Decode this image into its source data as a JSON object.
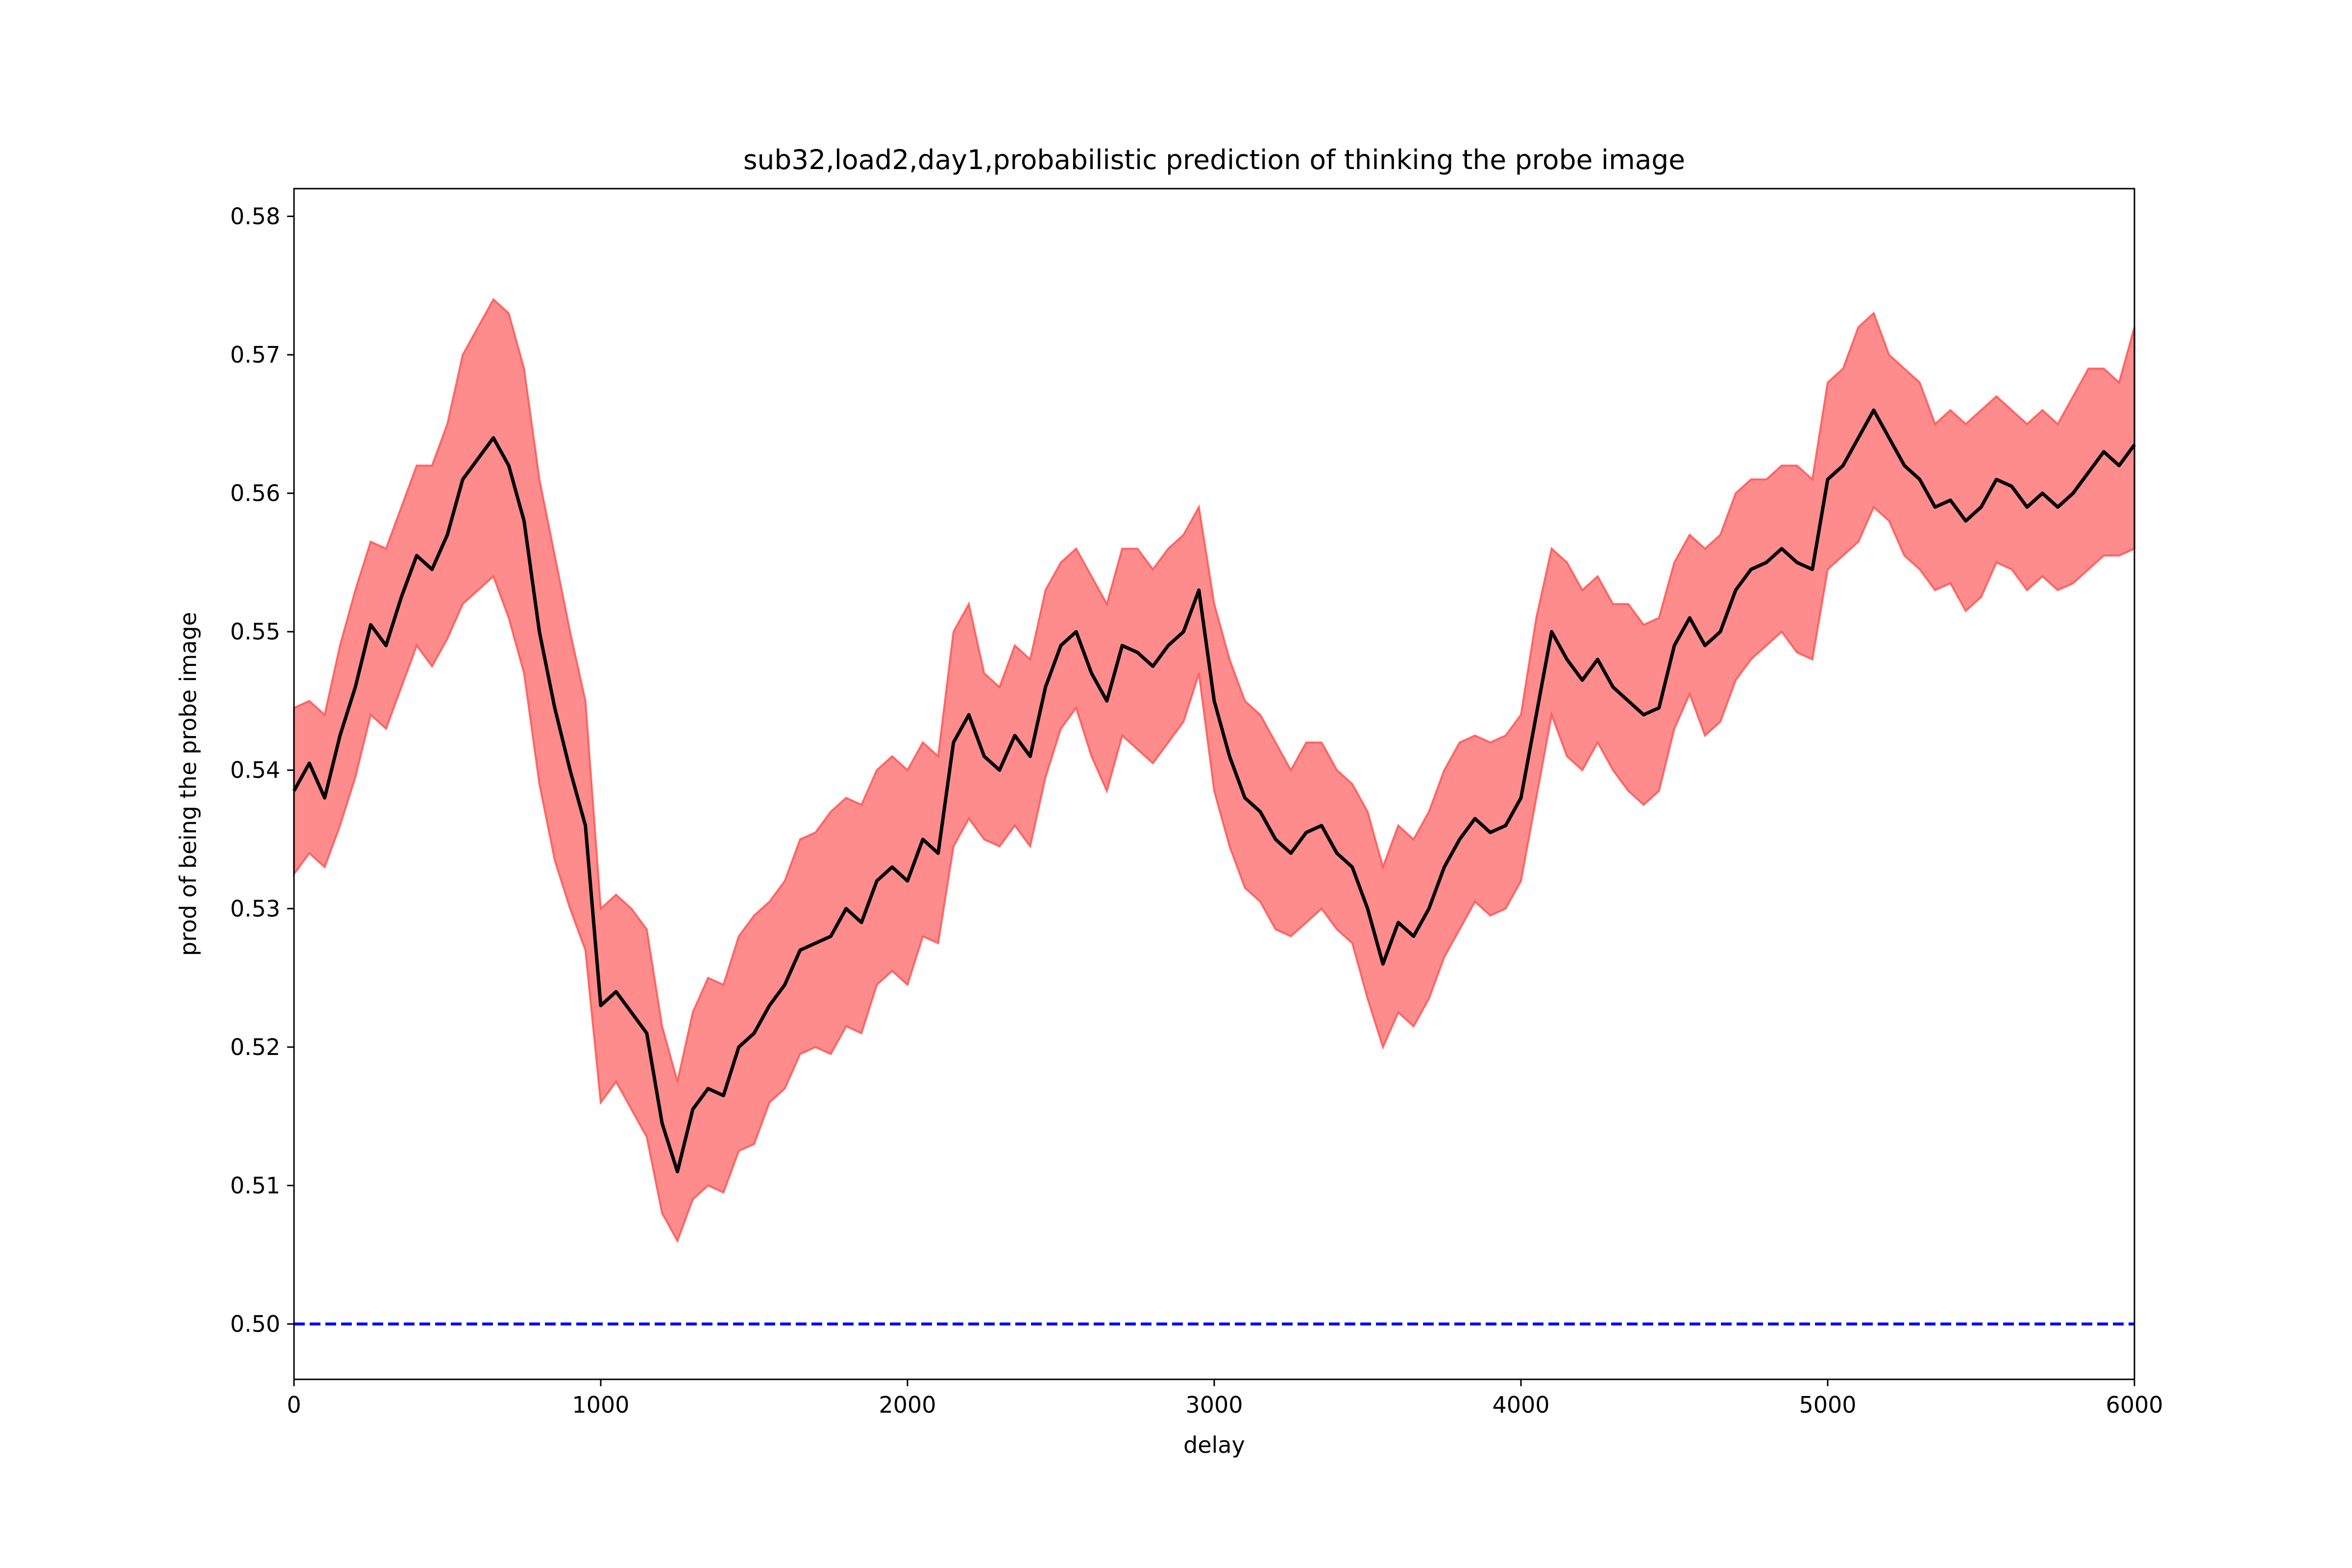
{
  "chart_data": {
    "type": "line",
    "title": "sub32,load2,day1,probabilistic prediction of thinking the probe image",
    "xlabel": "delay",
    "ylabel": "prod of being the probe image",
    "xlim": [
      0,
      6000
    ],
    "ylim": [
      0.496,
      0.582
    ],
    "xticks": [
      0,
      1000,
      2000,
      3000,
      4000,
      5000,
      6000
    ],
    "xtick_labels": [
      "0",
      "1000",
      "2000",
      "3000",
      "4000",
      "5000",
      "6000"
    ],
    "yticks": [
      0.5,
      0.51,
      0.52,
      0.53,
      0.54,
      0.55,
      0.56,
      0.57,
      0.58
    ],
    "ytick_labels": [
      "0.50",
      "0.51",
      "0.52",
      "0.53",
      "0.54",
      "0.55",
      "0.56",
      "0.57",
      "0.58"
    ],
    "grid": false,
    "legend": "none",
    "colors": {
      "mean": "#000000",
      "band": "#ff0000",
      "band_edge": "#ff4d4d",
      "reference": "#0000ff"
    },
    "reference_line": {
      "y": 0.5,
      "style": "dashed"
    },
    "series": [
      {
        "role": "mean",
        "x": [
          0,
          50,
          100,
          150,
          200,
          250,
          300,
          350,
          400,
          450,
          500,
          550,
          600,
          650,
          700,
          750,
          800,
          850,
          900,
          950,
          1000,
          1050,
          1100,
          1150,
          1200,
          1250,
          1300,
          1350,
          1400,
          1450,
          1500,
          1550,
          1600,
          1650,
          1700,
          1750,
          1800,
          1850,
          1900,
          1950,
          2000,
          2050,
          2100,
          2150,
          2200,
          2250,
          2300,
          2350,
          2400,
          2450,
          2500,
          2550,
          2600,
          2650,
          2700,
          2750,
          2800,
          2850,
          2900,
          2950,
          3000,
          3050,
          3100,
          3150,
          3200,
          3250,
          3300,
          3350,
          3400,
          3450,
          3500,
          3550,
          3600,
          3650,
          3700,
          3750,
          3800,
          3850,
          3900,
          3950,
          4000,
          4050,
          4100,
          4150,
          4200,
          4250,
          4300,
          4350,
          4400,
          4450,
          4500,
          4550,
          4600,
          4650,
          4700,
          4750,
          4800,
          4850,
          4900,
          4950,
          5000,
          5050,
          5100,
          5150,
          5200,
          5250,
          5300,
          5350,
          5400,
          5450,
          5500,
          5550,
          5600,
          5650,
          5700,
          5750,
          5800,
          5850,
          5900,
          5950,
          6000
        ],
        "y": [
          0.5385,
          0.5405,
          0.538,
          0.5425,
          0.546,
          0.5505,
          0.549,
          0.5525,
          0.5555,
          0.5545,
          0.557,
          0.561,
          0.5625,
          0.564,
          0.562,
          0.558,
          0.55,
          0.5445,
          0.54,
          0.536,
          0.523,
          0.524,
          0.5225,
          0.521,
          0.5145,
          0.511,
          0.5155,
          0.517,
          0.5165,
          0.52,
          0.521,
          0.523,
          0.5245,
          0.527,
          0.5275,
          0.528,
          0.53,
          0.529,
          0.532,
          0.533,
          0.532,
          0.535,
          0.534,
          0.542,
          0.544,
          0.541,
          0.54,
          0.5425,
          0.541,
          0.546,
          0.549,
          0.55,
          0.547,
          0.545,
          0.549,
          0.5485,
          0.5475,
          0.549,
          0.55,
          0.553,
          0.545,
          0.541,
          0.538,
          0.537,
          0.535,
          0.534,
          0.5355,
          0.536,
          0.534,
          0.533,
          0.53,
          0.526,
          0.529,
          0.528,
          0.53,
          0.533,
          0.535,
          0.5365,
          0.5355,
          0.536,
          0.538,
          0.544,
          0.55,
          0.548,
          0.5465,
          0.548,
          0.546,
          0.545,
          0.544,
          0.5445,
          0.549,
          0.551,
          0.549,
          0.55,
          0.553,
          0.5545,
          0.555,
          0.556,
          0.555,
          0.5545,
          0.561,
          0.562,
          0.564,
          0.566,
          0.564,
          0.562,
          0.561,
          0.559,
          0.5595,
          0.558,
          0.559,
          0.561,
          0.5605,
          0.559,
          0.56,
          0.559,
          0.56,
          0.5615,
          0.563,
          0.562,
          0.5635
        ]
      },
      {
        "role": "band_upper",
        "x": [
          0,
          50,
          100,
          150,
          200,
          250,
          300,
          350,
          400,
          450,
          500,
          550,
          600,
          650,
          700,
          750,
          800,
          850,
          900,
          950,
          1000,
          1050,
          1100,
          1150,
          1200,
          1250,
          1300,
          1350,
          1400,
          1450,
          1500,
          1550,
          1600,
          1650,
          1700,
          1750,
          1800,
          1850,
          1900,
          1950,
          2000,
          2050,
          2100,
          2150,
          2200,
          2250,
          2300,
          2350,
          2400,
          2450,
          2500,
          2550,
          2600,
          2650,
          2700,
          2750,
          2800,
          2850,
          2900,
          2950,
          3000,
          3050,
          3100,
          3150,
          3200,
          3250,
          3300,
          3350,
          3400,
          3450,
          3500,
          3550,
          3600,
          3650,
          3700,
          3750,
          3800,
          3850,
          3900,
          3950,
          4000,
          4050,
          4100,
          4150,
          4200,
          4250,
          4300,
          4350,
          4400,
          4450,
          4500,
          4550,
          4600,
          4650,
          4700,
          4750,
          4800,
          4850,
          4900,
          4950,
          5000,
          5050,
          5100,
          5150,
          5200,
          5250,
          5300,
          5350,
          5400,
          5450,
          5500,
          5550,
          5600,
          5650,
          5700,
          5750,
          5800,
          5850,
          5900,
          5950,
          6000
        ],
        "y": [
          0.5445,
          0.545,
          0.544,
          0.549,
          0.553,
          0.5565,
          0.556,
          0.559,
          0.562,
          0.562,
          0.565,
          0.57,
          0.572,
          0.574,
          0.573,
          0.569,
          0.561,
          0.5555,
          0.55,
          0.545,
          0.53,
          0.531,
          0.53,
          0.5285,
          0.5215,
          0.5175,
          0.5225,
          0.525,
          0.5245,
          0.528,
          0.5295,
          0.5305,
          0.532,
          0.535,
          0.5355,
          0.537,
          0.538,
          0.5375,
          0.54,
          0.541,
          0.54,
          0.542,
          0.541,
          0.55,
          0.552,
          0.547,
          0.546,
          0.549,
          0.548,
          0.553,
          0.555,
          0.556,
          0.554,
          0.552,
          0.556,
          0.556,
          0.5545,
          0.556,
          0.557,
          0.559,
          0.552,
          0.548,
          0.545,
          0.544,
          0.542,
          0.54,
          0.542,
          0.542,
          0.54,
          0.539,
          0.537,
          0.533,
          0.536,
          0.535,
          0.537,
          0.54,
          0.542,
          0.5425,
          0.542,
          0.5425,
          0.544,
          0.551,
          0.556,
          0.555,
          0.553,
          0.554,
          0.552,
          0.552,
          0.5505,
          0.551,
          0.555,
          0.557,
          0.556,
          0.557,
          0.56,
          0.561,
          0.561,
          0.562,
          0.562,
          0.561,
          0.568,
          0.569,
          0.572,
          0.573,
          0.57,
          0.569,
          0.568,
          0.565,
          0.566,
          0.565,
          0.566,
          0.567,
          0.566,
          0.565,
          0.566,
          0.565,
          0.567,
          0.569,
          0.569,
          0.568,
          0.572
        ]
      },
      {
        "role": "band_lower",
        "x": [
          0,
          50,
          100,
          150,
          200,
          250,
          300,
          350,
          400,
          450,
          500,
          550,
          600,
          650,
          700,
          750,
          800,
          850,
          900,
          950,
          1000,
          1050,
          1100,
          1150,
          1200,
          1250,
          1300,
          1350,
          1400,
          1450,
          1500,
          1550,
          1600,
          1650,
          1700,
          1750,
          1800,
          1850,
          1900,
          1950,
          2000,
          2050,
          2100,
          2150,
          2200,
          2250,
          2300,
          2350,
          2400,
          2450,
          2500,
          2550,
          2600,
          2650,
          2700,
          2750,
          2800,
          2850,
          2900,
          2950,
          3000,
          3050,
          3100,
          3150,
          3200,
          3250,
          3300,
          3350,
          3400,
          3450,
          3500,
          3550,
          3600,
          3650,
          3700,
          3750,
          3800,
          3850,
          3900,
          3950,
          4000,
          4050,
          4100,
          4150,
          4200,
          4250,
          4300,
          4350,
          4400,
          4450,
          4500,
          4550,
          4600,
          4650,
          4700,
          4750,
          4800,
          4850,
          4900,
          4950,
          5000,
          5050,
          5100,
          5150,
          5200,
          5250,
          5300,
          5350,
          5400,
          5450,
          5500,
          5550,
          5600,
          5650,
          5700,
          5750,
          5800,
          5850,
          5900,
          5950,
          6000
        ],
        "y": [
          0.5325,
          0.534,
          0.533,
          0.536,
          0.5395,
          0.544,
          0.543,
          0.546,
          0.549,
          0.5475,
          0.5495,
          0.552,
          0.553,
          0.554,
          0.551,
          0.547,
          0.539,
          0.5335,
          0.53,
          0.527,
          0.516,
          0.5175,
          0.5155,
          0.5135,
          0.508,
          0.506,
          0.509,
          0.51,
          0.5095,
          0.5125,
          0.513,
          0.516,
          0.517,
          0.5195,
          0.52,
          0.5195,
          0.5215,
          0.521,
          0.5245,
          0.5255,
          0.5245,
          0.528,
          0.5275,
          0.5345,
          0.5365,
          0.535,
          0.5345,
          0.536,
          0.5345,
          0.5395,
          0.543,
          0.5445,
          0.541,
          0.5385,
          0.5425,
          0.5415,
          0.5405,
          0.542,
          0.5435,
          0.547,
          0.5385,
          0.5345,
          0.5315,
          0.5305,
          0.5285,
          0.528,
          0.529,
          0.53,
          0.5285,
          0.5275,
          0.5235,
          0.52,
          0.5225,
          0.5215,
          0.5235,
          0.5265,
          0.5285,
          0.5305,
          0.5295,
          0.53,
          0.532,
          0.538,
          0.544,
          0.541,
          0.54,
          0.542,
          0.54,
          0.5385,
          0.5375,
          0.5385,
          0.543,
          0.5455,
          0.5425,
          0.5435,
          0.5465,
          0.548,
          0.549,
          0.55,
          0.5485,
          0.548,
          0.5545,
          0.5555,
          0.5565,
          0.559,
          0.558,
          0.5555,
          0.5545,
          0.553,
          0.5535,
          0.5515,
          0.5525,
          0.555,
          0.5545,
          0.553,
          0.554,
          0.553,
          0.5535,
          0.5545,
          0.5555,
          0.5555,
          0.556
        ]
      }
    ]
  }
}
